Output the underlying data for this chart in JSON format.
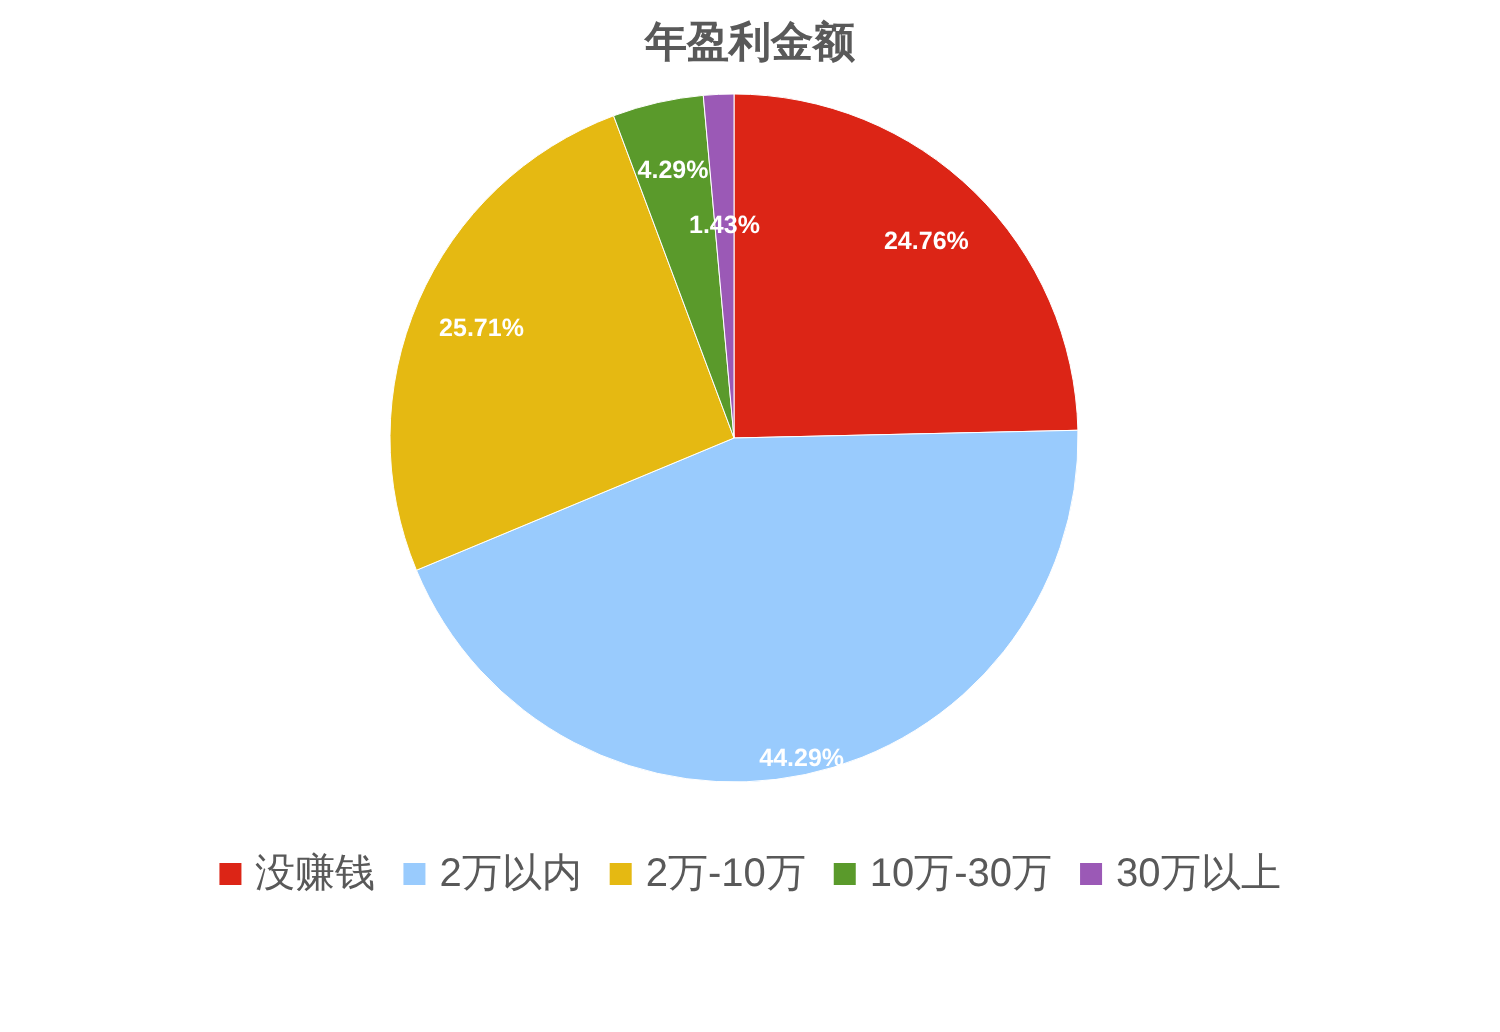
{
  "chart_data": {
    "type": "pie",
    "title": "年盈利金额",
    "categories": [
      "没赚钱",
      "2万以内",
      "2万-10万",
      "10万-30万",
      "30万以上"
    ],
    "values": [
      24.76,
      44.29,
      25.71,
      4.29,
      1.43
    ],
    "colors": [
      "#dc2516",
      "#99cbfd",
      "#e5b912",
      "#5a9a2b",
      "#9b59b6"
    ],
    "value_labels": [
      "24.76%",
      "44.29%",
      "25.71%",
      "4.29%",
      "1.43%"
    ],
    "legend": "bottom"
  }
}
